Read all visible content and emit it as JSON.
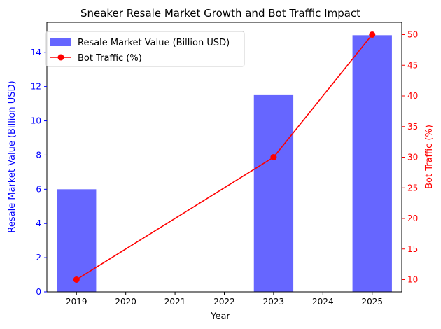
{
  "chart_data": {
    "type": "bar",
    "title": "Sneaker Resale Market Growth and Bot Traffic Impact",
    "xlabel": "Year",
    "x_ticks": [
      "2019",
      "2020",
      "2021",
      "2022",
      "2023",
      "2024",
      "2025"
    ],
    "x_range": [
      2018.4,
      2025.6
    ],
    "left_axis": {
      "label": "Resale Market Value (Billion USD)",
      "range": [
        0,
        15.75
      ],
      "ticks": [
        "0",
        "2",
        "4",
        "6",
        "8",
        "10",
        "12",
        "14"
      ],
      "color": "#0000ff"
    },
    "right_axis": {
      "label": "Bot Traffic (%)",
      "range": [
        8,
        52
      ],
      "ticks": [
        "10",
        "15",
        "20",
        "25",
        "30",
        "35",
        "40",
        "45",
        "50"
      ],
      "color": "#ff0000"
    },
    "series": [
      {
        "name": "Resale Market Value (Billion USD)",
        "type": "bar",
        "axis": "left",
        "color": "#6666ff",
        "x": [
          "2019",
          "2023",
          "2025"
        ],
        "values": [
          6.0,
          11.5,
          15.0
        ]
      },
      {
        "name": "Bot Traffic (%)",
        "type": "line",
        "axis": "right",
        "color": "#ff0000",
        "x": [
          "2019",
          "2023",
          "2025"
        ],
        "values": [
          10,
          30,
          50
        ]
      }
    ],
    "legend_position": "upper-left",
    "grid": false
  }
}
